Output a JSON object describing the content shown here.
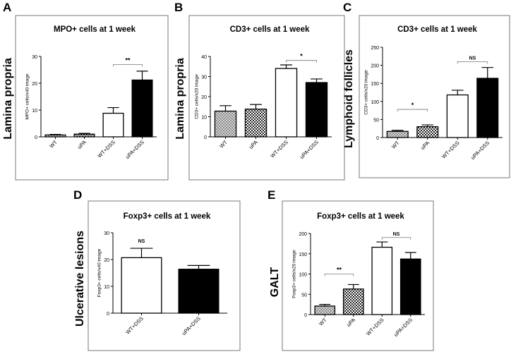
{
  "chart_data": [
    {
      "type": "bar",
      "panel_label": "A",
      "side_label": "Lamina propria",
      "title": "MPO+ cells at 1 week",
      "xlabel": "",
      "ylabel": "MPO+ cells/x40 image",
      "ylim": [
        0,
        30
      ],
      "yticks": [
        0,
        10,
        20,
        30
      ],
      "categories": [
        "WT",
        "uPA",
        "WT+DSS",
        "uPA+DSS"
      ],
      "values": [
        0.7,
        1.0,
        8.8,
        21.2
      ],
      "errors": [
        0.2,
        0.3,
        2.1,
        3.3
      ],
      "fills": [
        "checker",
        "dots",
        "white",
        "black"
      ],
      "significance": [
        {
          "from": 2,
          "to": 3,
          "label": "**",
          "y": 27
        }
      ]
    },
    {
      "type": "bar",
      "panel_label": "B",
      "side_label": "Lamina propria",
      "title": "CD3+ cells at 1 week",
      "xlabel": "",
      "ylabel": "CD3+ cells/x20 image",
      "ylim": [
        0,
        40
      ],
      "yticks": [
        0,
        10,
        20,
        30,
        40
      ],
      "categories": [
        "WT",
        "uPA",
        "WT+DSS",
        "uPA+DSS"
      ],
      "values": [
        12.8,
        13.8,
        34.0,
        27.0
      ],
      "errors": [
        2.7,
        2.3,
        1.8,
        1.8
      ],
      "fills": [
        "checker",
        "dots",
        "white",
        "black"
      ],
      "significance": [
        {
          "from": 2,
          "to": 3,
          "label": "*",
          "y": 38
        }
      ]
    },
    {
      "type": "bar",
      "panel_label": "C",
      "side_label": "Lymphoid follicles",
      "title": "CD3+ cells at 1 week",
      "xlabel": "",
      "ylabel": "CD3+ cells/x20 image",
      "ylim": [
        0,
        250
      ],
      "yticks": [
        0,
        50,
        100,
        150,
        200,
        250
      ],
      "categories": [
        "WT",
        "uPA",
        "WT+DSS",
        "uPA+DSS"
      ],
      "values": [
        17,
        30,
        118,
        164
      ],
      "errors": [
        3,
        5,
        13,
        30
      ],
      "fills": [
        "checker",
        "dots",
        "white",
        "black"
      ],
      "significance": [
        {
          "from": 0,
          "to": 1,
          "label": "*",
          "y": 78
        },
        {
          "from": 2,
          "to": 3,
          "label": "NS",
          "y": 210
        }
      ]
    },
    {
      "type": "bar",
      "panel_label": "D",
      "side_label": "Ulcerative lesions",
      "title": "Foxp3+ cells at 1 week",
      "xlabel": "",
      "ylabel": "Foxp3+ cells/x40 image",
      "ylim": [
        0,
        30
      ],
      "yticks": [
        0,
        10,
        20,
        30
      ],
      "categories": [
        "WT+DSS",
        "uPA+DSS"
      ],
      "values": [
        20.7,
        16.4
      ],
      "errors": [
        3.5,
        1.4
      ],
      "fills": [
        "white",
        "black"
      ],
      "significance": [
        {
          "from": 0,
          "to": 0,
          "label": "NS",
          "y": 25.5
        }
      ]
    },
    {
      "type": "bar",
      "panel_label": "E",
      "side_label": "GALT",
      "title": "Foxp3+ cells at 1 week",
      "xlabel": "",
      "ylabel": "Foxp3+ cells/x20 image",
      "ylim": [
        0,
        200
      ],
      "yticks": [
        0,
        50,
        100,
        150,
        200
      ],
      "categories": [
        "WT",
        "uPA",
        "WT+DSS",
        "uPA+DSS"
      ],
      "values": [
        21,
        63,
        166,
        137
      ],
      "errors": [
        4,
        11,
        13,
        16
      ],
      "fills": [
        "checker",
        "dots",
        "white",
        "black"
      ],
      "significance": [
        {
          "from": 0,
          "to": 1,
          "label": "**",
          "y": 100
        },
        {
          "from": 2,
          "to": 3,
          "label": "NS",
          "y": 190
        }
      ]
    }
  ]
}
